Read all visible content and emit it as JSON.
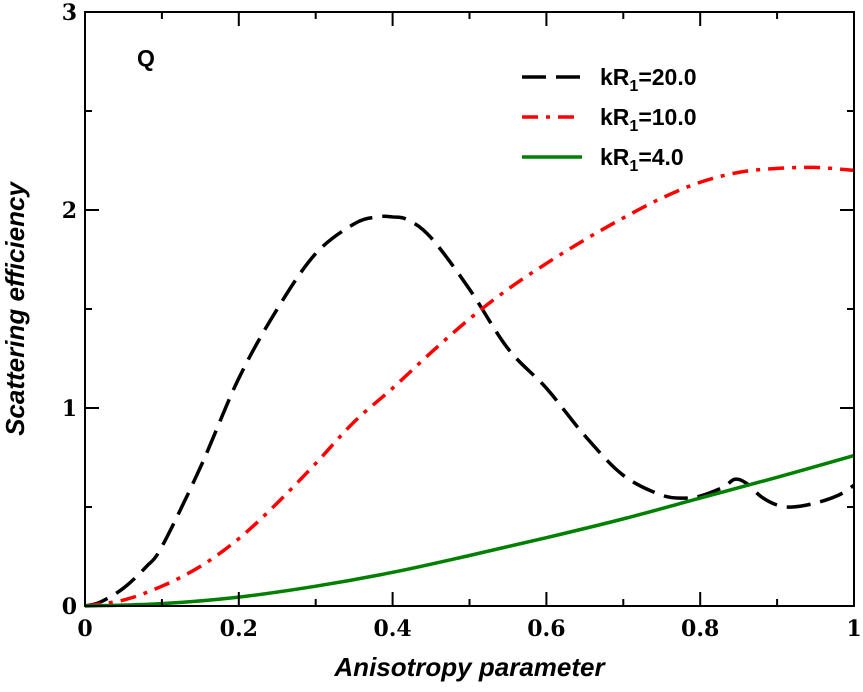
{
  "chart_data": {
    "type": "line",
    "title": "",
    "panel_label": "Q",
    "xlabel": "Anisotropy parameter",
    "ylabel": "Scattering efficiency",
    "xlim": [
      0,
      1
    ],
    "ylim": [
      0,
      3
    ],
    "grid": false,
    "legend_position": "top-right",
    "x_ticks": [
      {
        "value": 0,
        "label": "0"
      },
      {
        "value": 0.2,
        "label": "0.2"
      },
      {
        "value": 0.4,
        "label": "0.4"
      },
      {
        "value": 0.6,
        "label": "0.6"
      },
      {
        "value": 0.8,
        "label": "0.8"
      },
      {
        "value": 1,
        "label": "1"
      }
    ],
    "y_ticks": [
      {
        "value": 0,
        "label": "0"
      },
      {
        "value": 1,
        "label": "1"
      },
      {
        "value": 2,
        "label": "2"
      },
      {
        "value": 3,
        "label": "3"
      }
    ],
    "series": [
      {
        "name": "kR1=20.0",
        "legend_main": "kR",
        "legend_sub": "1",
        "legend_tail": "=20.0",
        "color": "#000000",
        "style": "dashed",
        "x": [
          0,
          0.02,
          0.05,
          0.08,
          0.1,
          0.15,
          0.2,
          0.25,
          0.3,
          0.35,
          0.38,
          0.4,
          0.42,
          0.45,
          0.5,
          0.55,
          0.6,
          0.65,
          0.7,
          0.75,
          0.78,
          0.8,
          0.83,
          0.845,
          0.86,
          0.88,
          0.9,
          0.92,
          0.95,
          0.98,
          1.0
        ],
        "y": [
          0,
          0.02,
          0.09,
          0.2,
          0.3,
          0.7,
          1.15,
          1.5,
          1.78,
          1.93,
          1.965,
          1.965,
          1.95,
          1.86,
          1.6,
          1.3,
          1.1,
          0.86,
          0.66,
          0.56,
          0.545,
          0.555,
          0.6,
          0.64,
          0.62,
          0.55,
          0.51,
          0.5,
          0.52,
          0.56,
          0.61
        ]
      },
      {
        "name": "kR1=10.0",
        "legend_main": "kR",
        "legend_sub": "1",
        "legend_tail": "=10.0",
        "color": "#ff0000",
        "style": "dash-dot",
        "x": [
          0,
          0.05,
          0.1,
          0.15,
          0.2,
          0.25,
          0.3,
          0.35,
          0.4,
          0.45,
          0.5,
          0.55,
          0.6,
          0.65,
          0.7,
          0.75,
          0.8,
          0.85,
          0.9,
          0.95,
          1.0
        ],
        "y": [
          0,
          0.03,
          0.1,
          0.2,
          0.34,
          0.52,
          0.72,
          0.93,
          1.1,
          1.28,
          1.45,
          1.6,
          1.73,
          1.85,
          1.96,
          2.06,
          2.14,
          2.19,
          2.21,
          2.215,
          2.2
        ]
      },
      {
        "name": "kR1=4.0",
        "legend_main": "kR",
        "legend_sub": "1",
        "legend_tail": "=4.0",
        "color": "#008000",
        "style": "solid",
        "x": [
          0,
          0.1,
          0.2,
          0.3,
          0.4,
          0.5,
          0.6,
          0.7,
          0.8,
          0.9,
          1.0
        ],
        "y": [
          0,
          0.012,
          0.045,
          0.1,
          0.17,
          0.255,
          0.345,
          0.44,
          0.545,
          0.65,
          0.76
        ]
      }
    ]
  }
}
